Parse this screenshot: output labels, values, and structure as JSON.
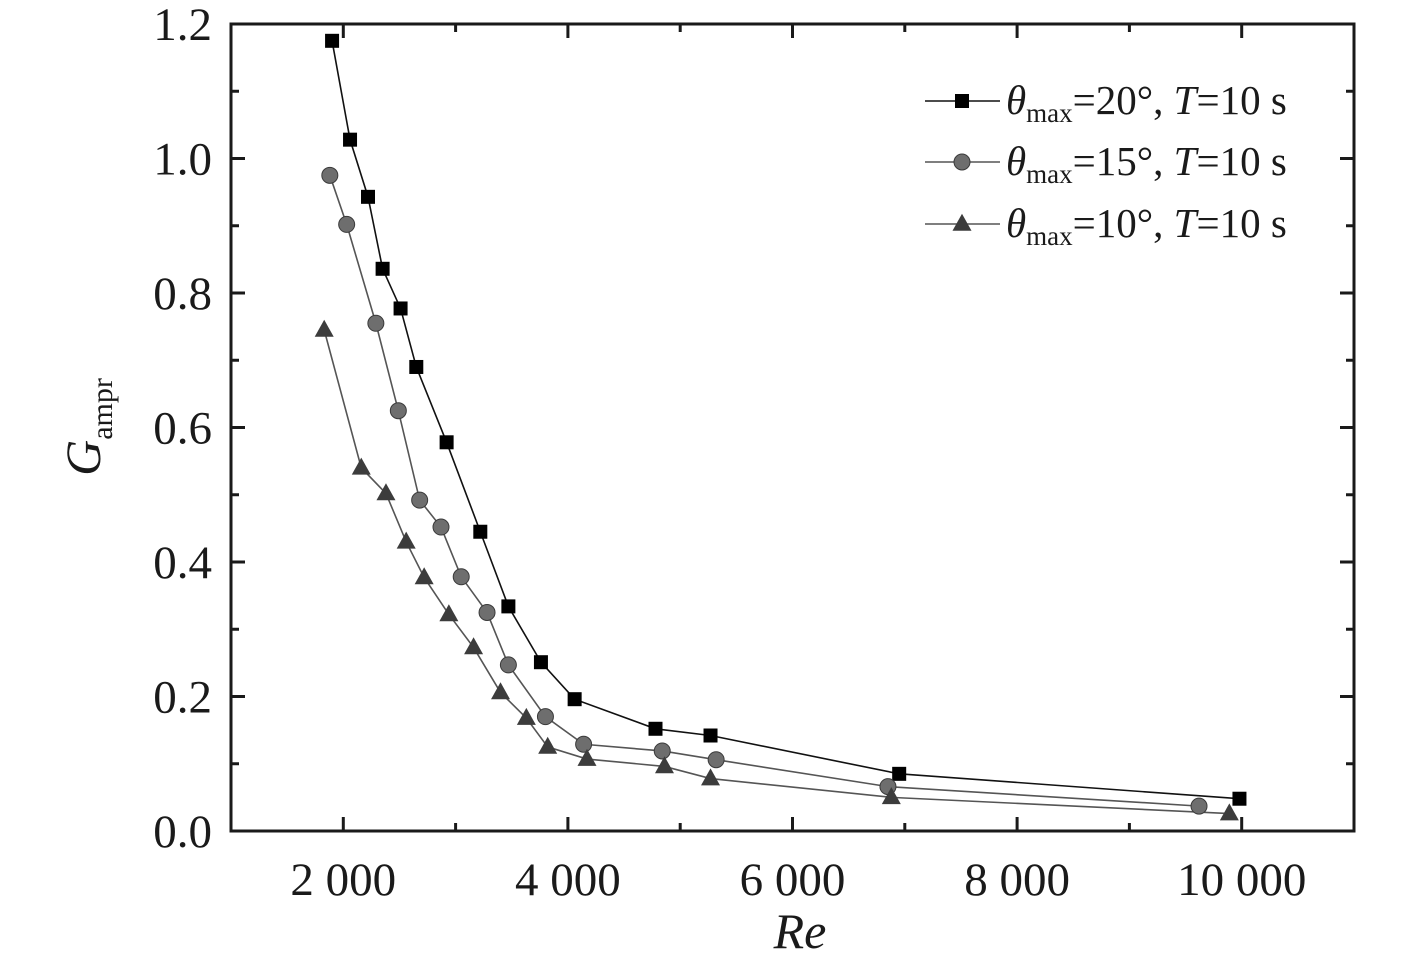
{
  "chart_data": {
    "type": "line",
    "xlabel": "Re",
    "ylabel": {
      "main": "G",
      "sub": "ampr"
    },
    "xlim": [
      1000,
      11000
    ],
    "ylim": [
      0.0,
      1.2
    ],
    "xticks": [
      {
        "value": 2000,
        "label": "2 000"
      },
      {
        "value": 4000,
        "label": "4 000"
      },
      {
        "value": 6000,
        "label": "6 000"
      },
      {
        "value": 8000,
        "label": "8 000"
      },
      {
        "value": 10000,
        "label": "10 000"
      }
    ],
    "yticks": [
      {
        "value": 0.0,
        "label": "0.0"
      },
      {
        "value": 0.2,
        "label": "0.2"
      },
      {
        "value": 0.4,
        "label": "0.4"
      },
      {
        "value": 0.6,
        "label": "0.6"
      },
      {
        "value": 0.8,
        "label": "0.8"
      },
      {
        "value": 1.0,
        "label": "1.0"
      },
      {
        "value": 1.2,
        "label": "1.2"
      }
    ],
    "legend_position": "top-right",
    "grid": false,
    "series": [
      {
        "label_parts": [
          "θ",
          "max",
          "=20°, ",
          "T",
          "=10 s"
        ],
        "marker": "square",
        "color": "#000000",
        "x": [
          1900,
          2060,
          2220,
          2350,
          2510,
          2650,
          2920,
          3220,
          3470,
          3760,
          4060,
          4780,
          5270,
          6950,
          9980
        ],
        "y": [
          1.175,
          1.028,
          0.943,
          0.836,
          0.777,
          0.69,
          0.578,
          0.445,
          0.334,
          0.251,
          0.196,
          0.152,
          0.142,
          0.085,
          0.048
        ]
      },
      {
        "label_parts": [
          "θ",
          "max",
          "=15°, ",
          "T",
          "=10 s"
        ],
        "marker": "circle",
        "color": "#6e6e6e",
        "x": [
          1880,
          2030,
          2290,
          2490,
          2680,
          2870,
          3050,
          3280,
          3470,
          3800,
          4140,
          4840,
          5320,
          6850,
          9620
        ],
        "y": [
          0.975,
          0.902,
          0.755,
          0.625,
          0.492,
          0.452,
          0.378,
          0.325,
          0.247,
          0.17,
          0.129,
          0.119,
          0.106,
          0.066,
          0.037
        ]
      },
      {
        "label_parts": [
          "θ",
          "max",
          "=10°, ",
          "T",
          "=10 s"
        ],
        "marker": "triangle",
        "color": "#3c3c3c",
        "x": [
          1830,
          2160,
          2380,
          2560,
          2720,
          2940,
          3160,
          3400,
          3630,
          3820,
          4170,
          4860,
          5270,
          6880,
          9890
        ],
        "y": [
          0.745,
          0.54,
          0.502,
          0.43,
          0.377,
          0.322,
          0.273,
          0.206,
          0.168,
          0.125,
          0.107,
          0.096,
          0.078,
          0.05,
          0.026
        ]
      }
    ]
  }
}
